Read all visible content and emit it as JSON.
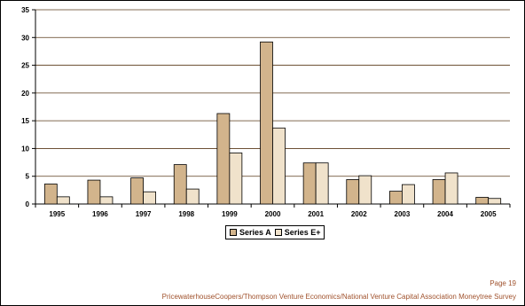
{
  "chart_data": {
    "type": "bar",
    "categories": [
      "1995",
      "1996",
      "1997",
      "1998",
      "1999",
      "2000",
      "2001",
      "2002",
      "2003",
      "2004",
      "2005"
    ],
    "series": [
      {
        "name": "Series A",
        "values": [
          3.6,
          4.3,
          4.7,
          7.1,
          16.3,
          29.2,
          7.4,
          4.4,
          2.3,
          4.4,
          1.2
        ],
        "color": "#d2b48c"
      },
      {
        "name": "Series E+",
        "values": [
          1.3,
          1.3,
          2.2,
          2.7,
          9.2,
          13.7,
          7.4,
          5.1,
          3.5,
          5.6,
          1.0
        ],
        "color": "#f0e2cb"
      }
    ],
    "ylim": [
      0,
      35
    ],
    "yticks": [
      0,
      5,
      10,
      15,
      20,
      25,
      30,
      35
    ],
    "grid": true,
    "legend": "bottom"
  },
  "footer": {
    "page": "Page 19",
    "source": "PricewaterhouseCoopers/Thompson Venture Economics/National Venture Capital Association Moneytree Survey"
  },
  "colors": {
    "grid": "#5a3a1a",
    "axis": "#000000"
  }
}
